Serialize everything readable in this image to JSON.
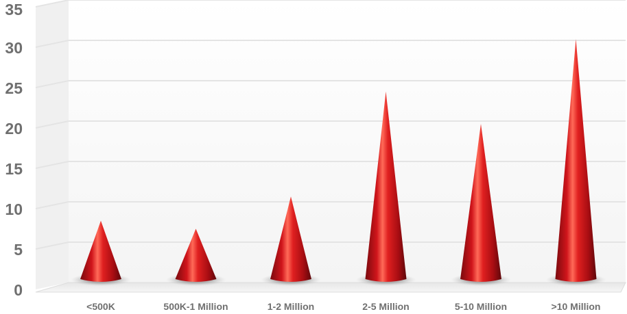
{
  "chart_data": {
    "type": "bar",
    "style": "3d-cone",
    "categories": [
      "<500K",
      "500K-1 Million",
      "1-2 Million",
      "2-5 Million",
      "5-10 Million",
      ">10 Million"
    ],
    "values": [
      8,
      7,
      11,
      24,
      20,
      30.5
    ],
    "ylim": [
      0,
      35
    ],
    "yticks": [
      0,
      5,
      10,
      15,
      20,
      25,
      30,
      35
    ],
    "ytick_labels": [
      "0",
      "5",
      "10",
      "15",
      "20",
      "25",
      "30",
      "35"
    ],
    "title": "",
    "xlabel": "",
    "ylabel": "",
    "grid": true,
    "legend": "none",
    "colors": {
      "cone_light": "#ff5a4a",
      "cone_mid": "#d8141a",
      "cone_dark": "#6e0a0d",
      "grid": "#e4e4e4",
      "wall": "#f7f7f7",
      "floor": "#ececec",
      "text": "#6f6f6f"
    }
  }
}
